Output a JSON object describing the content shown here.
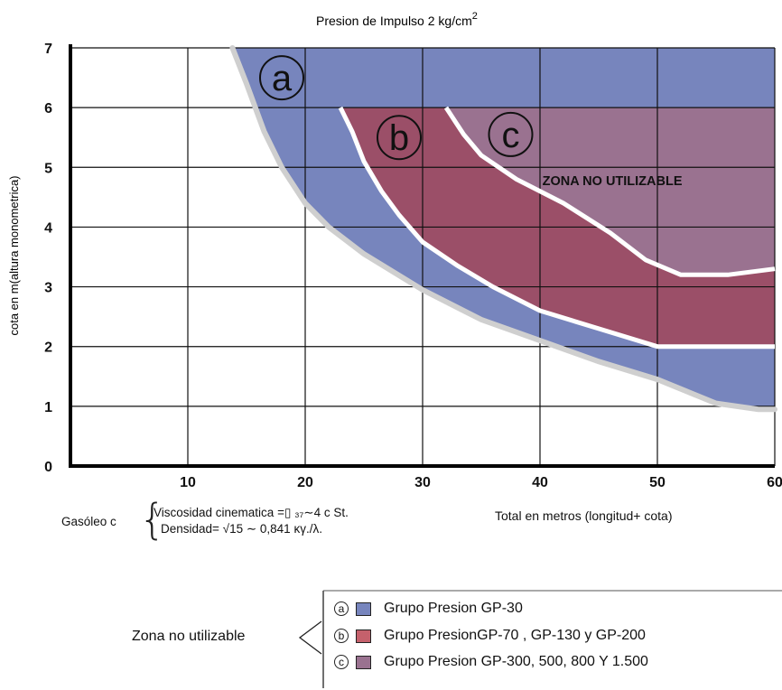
{
  "chart_data": {
    "type": "area",
    "title": "Presion de Impulso 2 kg/cm",
    "title_superscript": "2",
    "xlabel": "Total en metros (longitud+ cota)",
    "ylabel": "cota en m(altura monometrica)",
    "xlim": [
      0,
      60
    ],
    "ylim": [
      0,
      7
    ],
    "x_ticks": [
      "10",
      "20",
      "30",
      "40",
      "50",
      "60"
    ],
    "y_ticks": [
      "0",
      "1",
      "2",
      "3",
      "4",
      "5",
      "6",
      "7"
    ],
    "grid": true,
    "series": [
      {
        "label": "a",
        "color": "#7785bd",
        "boundary": [
          [
            13.8,
            7
          ],
          [
            15,
            6.4
          ],
          [
            16.5,
            5.6
          ],
          [
            18,
            5
          ],
          [
            20,
            4.4
          ],
          [
            22,
            4
          ],
          [
            25,
            3.55
          ],
          [
            30,
            2.95
          ],
          [
            35,
            2.45
          ],
          [
            40,
            2.1
          ],
          [
            45,
            1.75
          ],
          [
            50,
            1.45
          ],
          [
            55,
            1.05
          ],
          [
            58.6,
            0.95
          ],
          [
            60,
            0.95
          ]
        ]
      },
      {
        "label": "b",
        "color": "#9b4f68",
        "boundary": [
          [
            23,
            6
          ],
          [
            24,
            5.6
          ],
          [
            25,
            5.1
          ],
          [
            26.5,
            4.6
          ],
          [
            28,
            4.2
          ],
          [
            30,
            3.75
          ],
          [
            33,
            3.35
          ],
          [
            36,
            3
          ],
          [
            40,
            2.6
          ],
          [
            45,
            2.3
          ],
          [
            50,
            2
          ],
          [
            60,
            2
          ]
        ]
      },
      {
        "label": "c",
        "color": "#9a7290",
        "boundary": [
          [
            32,
            6
          ],
          [
            33.5,
            5.55
          ],
          [
            35,
            5.2
          ],
          [
            38,
            4.8
          ],
          [
            42,
            4.4
          ],
          [
            46,
            3.9
          ],
          [
            49,
            3.45
          ],
          [
            52,
            3.2
          ],
          [
            56,
            3.2
          ],
          [
            60,
            3.3
          ]
        ]
      }
    ],
    "annotations": [
      {
        "text": "ZONA NO UTILIZABLE"
      }
    ]
  },
  "notes": {
    "gasoleo_label": "Gasóleo c",
    "line1": "Viscosidad  cinematica  =▯  ₃₇∼4 c St.",
    "line2": "Densidad= √15 ∼ 0,841 κγ./λ."
  },
  "legend": {
    "title": "Zona no utilizable",
    "items": [
      {
        "letter": "a",
        "label": "Grupo Presion GP-30",
        "color": "#7785bd"
      },
      {
        "letter": "b",
        "label": "Grupo PresionGP-70 , GP-130 y GP-200",
        "color": "#c5616c"
      },
      {
        "letter": "c",
        "label": "Grupo Presion GP-300, 500, 800 Y 1.500",
        "color": "#9a7290"
      }
    ]
  }
}
